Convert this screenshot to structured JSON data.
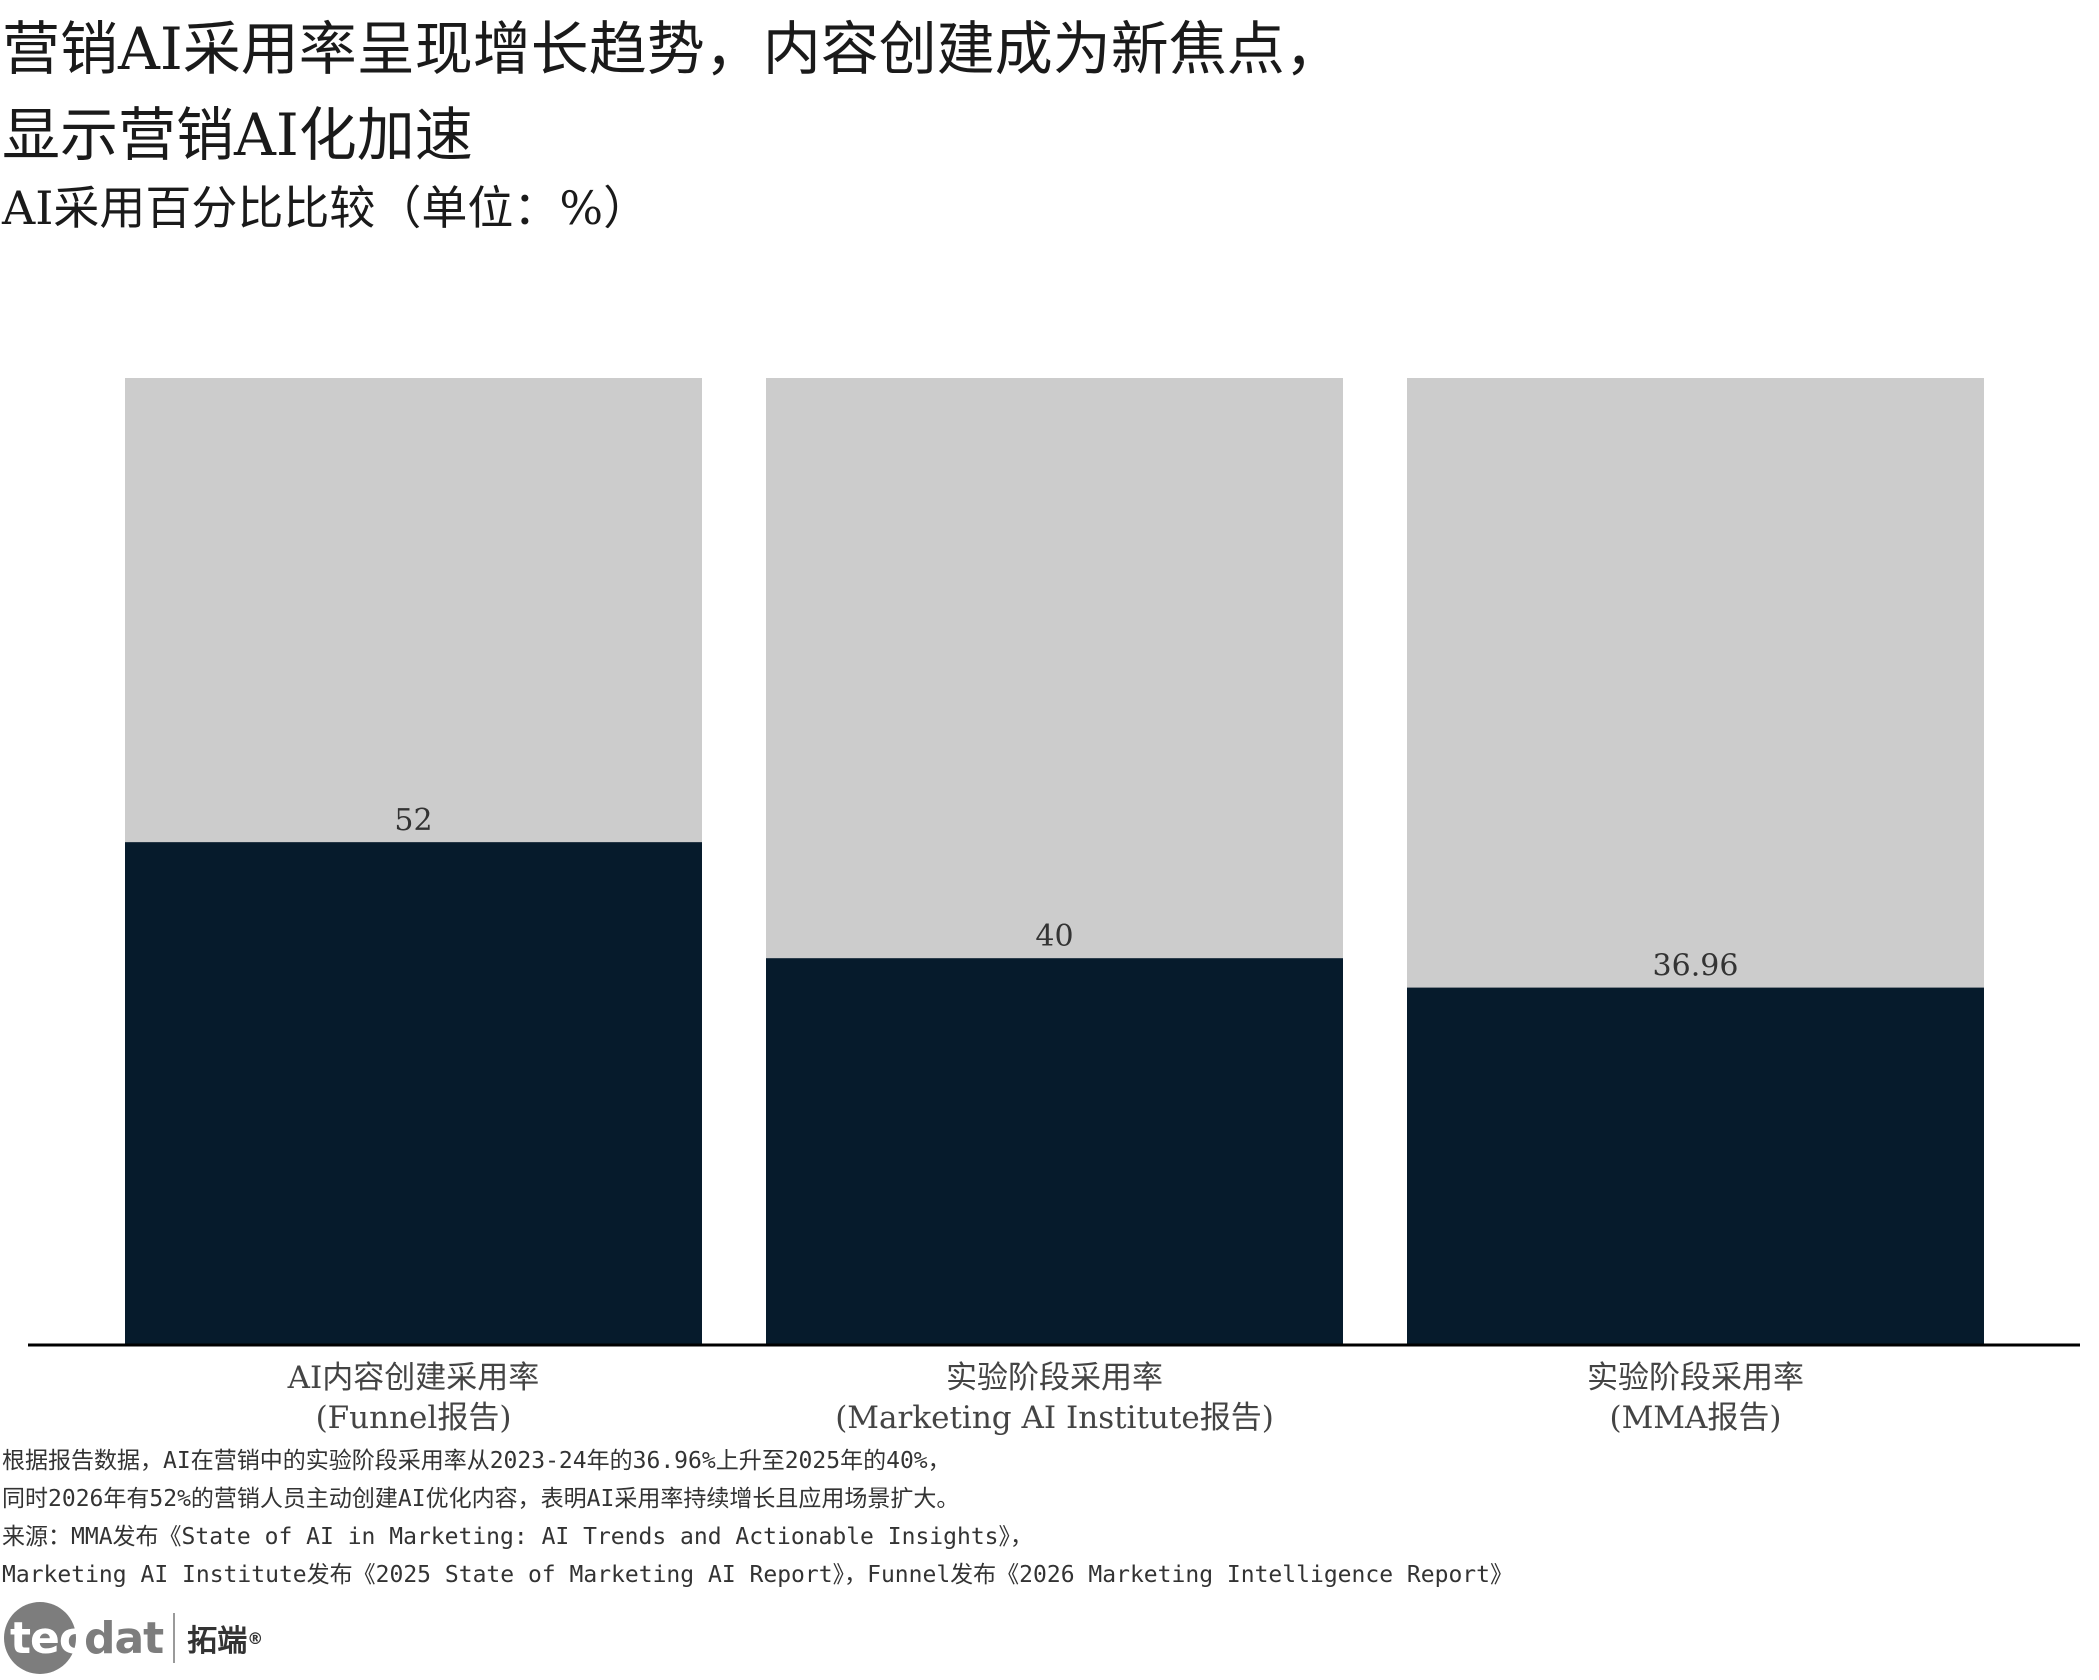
{
  "title_lines": [
    "营销AI采用率呈现增长趋势，内容创建成为新焦点，",
    "显示营销AI化加速"
  ],
  "subtitle": "AI采用百分比比较（单位：%）",
  "chart_data": {
    "type": "bar",
    "categories": [
      [
        "AI内容创建采用率",
        "(Funnel报告)"
      ],
      [
        "实验阶段采用率",
        "(Marketing AI Institute报告)"
      ],
      [
        "实验阶段采用率",
        "(MMA报告)"
      ]
    ],
    "values": [
      52,
      40,
      36.96
    ],
    "value_labels": [
      "52",
      "40",
      "36.96"
    ],
    "ylim": [
      0,
      100
    ],
    "background_total": 100,
    "colors": {
      "bar": "#061b2c",
      "background_bar": "#cccccc",
      "axis": "#000000",
      "text": "#333333"
    }
  },
  "notes": [
    "根据报告数据，AI在营销中的实验阶段采用率从2023-24年的36.96%上升至2025年的40%，",
    "同时2026年有52%的营销人员主动创建AI优化内容，表明AI采用率持续增长且应用场景扩大。",
    "来源：MMA发布《State of AI in Marketing: AI Trends and Actionable Insights》，",
    "Marketing AI Institute发布《2025 State of Marketing AI Report》，Funnel发布《2026 Marketing Intelligence Report》"
  ],
  "logo": {
    "text_first": "tec",
    "text_rest": "dat",
    "chinese": "拓端",
    "registered": "®"
  }
}
